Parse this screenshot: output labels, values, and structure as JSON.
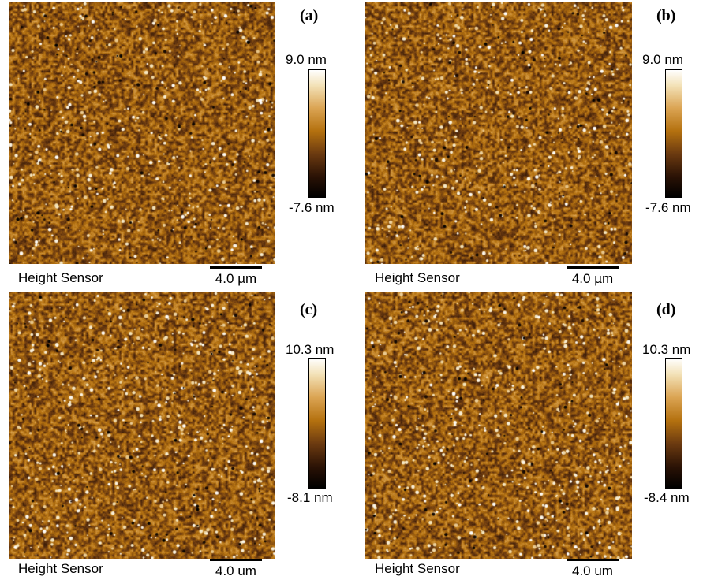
{
  "panels": [
    {
      "letter": "(a)",
      "caption": "Height Sensor",
      "scale": "4.0 µm",
      "max": "9.0 nm",
      "min": "-7.6 nm"
    },
    {
      "letter": "(b)",
      "caption": "Height Sensor",
      "scale": "4.0 µm",
      "max": "9.0 nm",
      "min": "-7.6 nm"
    },
    {
      "letter": "(c)",
      "caption": "Height Sensor",
      "scale": "4.0 um",
      "max": "10.3 nm",
      "min": "-8.1 nm"
    },
    {
      "letter": "(d)",
      "caption": "Height Sensor",
      "scale": "4.0 um",
      "max": "10.3 nm",
      "min": "-8.4 nm"
    }
  ],
  "colormap": [
    "#000000",
    "#2a1205",
    "#6b3a10",
    "#b4710f",
    "#dba453",
    "#f3e2b8",
    "#ffffff"
  ]
}
